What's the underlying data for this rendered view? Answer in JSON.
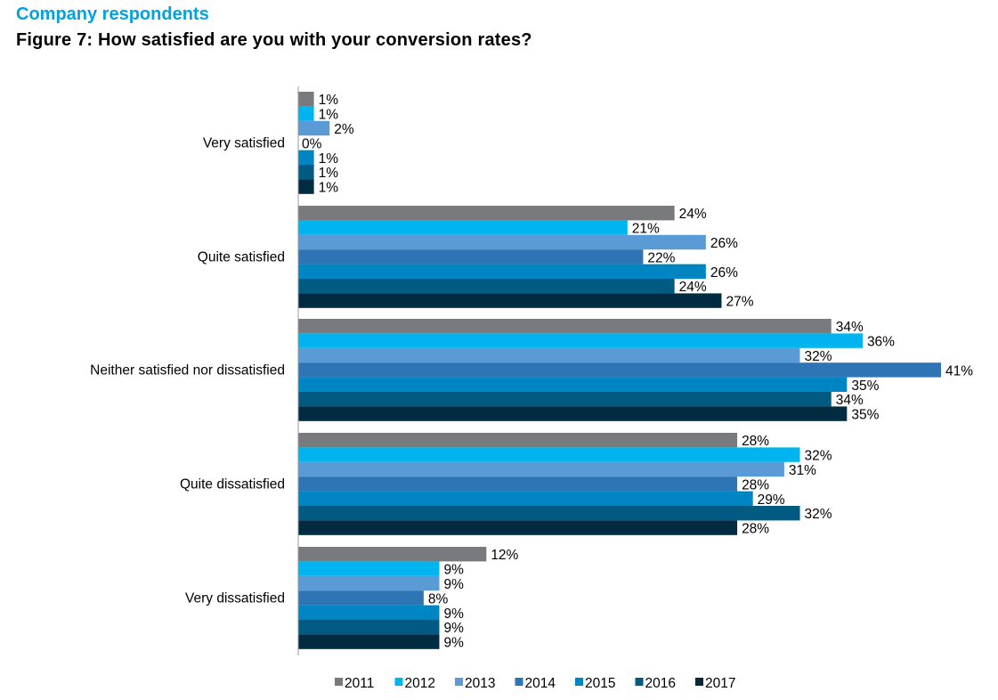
{
  "header": {
    "supertitle": "Company respondents",
    "title": "Figure 7: How satisfied are you with your conversion rates?"
  },
  "chart_data": {
    "type": "bar",
    "orientation": "horizontal",
    "title": "",
    "xlabel": "",
    "ylabel": "",
    "xlim": [
      0,
      41
    ],
    "grid": false,
    "legend_position": "bottom",
    "value_format": "percent",
    "categories": [
      "Very satisfied",
      "Quite satisfied",
      "Neither satisfied nor dissatisfied",
      "Quite dissatisfied",
      "Very dissatisfied"
    ],
    "series": [
      {
        "name": "2011",
        "color": "#797a7d",
        "values": [
          1,
          24,
          34,
          28,
          12
        ]
      },
      {
        "name": "2012",
        "color": "#00b4f0",
        "values": [
          1,
          21,
          36,
          32,
          9
        ]
      },
      {
        "name": "2013",
        "color": "#5b9bd5",
        "values": [
          2,
          26,
          32,
          31,
          9
        ]
      },
      {
        "name": "2014",
        "color": "#2e75b6",
        "values": [
          0,
          22,
          41,
          28,
          8
        ]
      },
      {
        "name": "2015",
        "color": "#0085c3",
        "values": [
          1,
          26,
          35,
          29,
          9
        ]
      },
      {
        "name": "2016",
        "color": "#005a82",
        "values": [
          1,
          24,
          34,
          32,
          9
        ]
      },
      {
        "name": "2017",
        "color": "#002b40",
        "values": [
          1,
          27,
          35,
          28,
          9
        ]
      }
    ]
  }
}
